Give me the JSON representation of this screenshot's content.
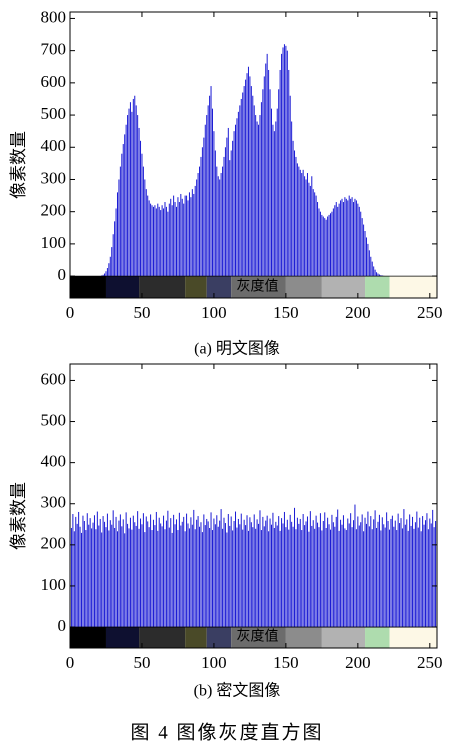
{
  "figure_caption": "图 4   图像灰度直方图",
  "chart_data": [
    {
      "type": "bar",
      "caption": "(a) 明文图像",
      "ylabel": "像素数量",
      "colorbar_label": "灰度值",
      "color": "#1c1cd4",
      "xlim": [
        0,
        255
      ],
      "xticks": [
        0,
        50,
        100,
        150,
        200,
        250
      ],
      "ylim": [
        -68,
        820
      ],
      "yticks": [
        0,
        100,
        200,
        300,
        400,
        500,
        600,
        700,
        800
      ],
      "x": [
        0,
        1,
        2,
        3,
        4,
        5,
        6,
        7,
        8,
        9,
        10,
        11,
        12,
        13,
        14,
        15,
        16,
        17,
        18,
        19,
        20,
        21,
        22,
        23,
        24,
        25,
        26,
        27,
        28,
        29,
        30,
        31,
        32,
        33,
        34,
        35,
        36,
        37,
        38,
        39,
        40,
        41,
        42,
        43,
        44,
        45,
        46,
        47,
        48,
        49,
        50,
        51,
        52,
        53,
        54,
        55,
        56,
        57,
        58,
        59,
        60,
        61,
        62,
        63,
        64,
        65,
        66,
        67,
        68,
        69,
        70,
        71,
        72,
        73,
        74,
        75,
        76,
        77,
        78,
        79,
        80,
        81,
        82,
        83,
        84,
        85,
        86,
        87,
        88,
        89,
        90,
        91,
        92,
        93,
        94,
        95,
        96,
        97,
        98,
        99,
        100,
        101,
        102,
        103,
        104,
        105,
        106,
        107,
        108,
        109,
        110,
        111,
        112,
        113,
        114,
        115,
        116,
        117,
        118,
        119,
        120,
        121,
        122,
        123,
        124,
        125,
        126,
        127,
        128,
        129,
        130,
        131,
        132,
        133,
        134,
        135,
        136,
        137,
        138,
        139,
        140,
        141,
        142,
        143,
        144,
        145,
        146,
        147,
        148,
        149,
        150,
        151,
        152,
        153,
        154,
        155,
        156,
        157,
        158,
        159,
        160,
        161,
        162,
        163,
        164,
        165,
        166,
        167,
        168,
        169,
        170,
        171,
        172,
        173,
        174,
        175,
        176,
        177,
        178,
        179,
        180,
        181,
        182,
        183,
        184,
        185,
        186,
        187,
        188,
        189,
        190,
        191,
        192,
        193,
        194,
        195,
        196,
        197,
        198,
        199,
        200,
        201,
        202,
        203,
        204,
        205,
        206,
        207,
        208,
        209,
        210,
        211,
        212,
        213,
        214,
        215,
        216,
        217,
        218,
        219,
        220,
        221,
        222,
        223,
        224,
        225,
        226,
        227,
        228,
        229,
        230,
        231,
        232,
        233,
        234,
        235,
        236,
        237,
        238,
        239,
        240,
        241,
        242,
        243,
        244,
        245,
        246,
        247,
        248,
        249,
        250,
        251,
        252,
        253,
        254,
        255
      ],
      "values": [
        0,
        0,
        0,
        0,
        0,
        0,
        0,
        0,
        0,
        0,
        0,
        0,
        0,
        0,
        0,
        0,
        0,
        0,
        0,
        0,
        0,
        0,
        2,
        4,
        8,
        15,
        25,
        40,
        60,
        90,
        130,
        170,
        210,
        260,
        300,
        340,
        380,
        410,
        440,
        470,
        500,
        520,
        540,
        510,
        550,
        560,
        530,
        500,
        460,
        420,
        380,
        340,
        300,
        270,
        250,
        235,
        225,
        220,
        215,
        220,
        210,
        225,
        215,
        205,
        220,
        210,
        230,
        215,
        200,
        225,
        240,
        220,
        250,
        230,
        215,
        245,
        230,
        255,
        240,
        225,
        250,
        250,
        235,
        260,
        245,
        270,
        255,
        280,
        300,
        320,
        340,
        370,
        400,
        430,
        470,
        500,
        530,
        560,
        590,
        520,
        450,
        390,
        340,
        310,
        300,
        320,
        340,
        370,
        400,
        430,
        460,
        360,
        390,
        420,
        450,
        470,
        490,
        510,
        530,
        550,
        570,
        590,
        610,
        630,
        650,
        620,
        590,
        560,
        530,
        500,
        480,
        470,
        500,
        540,
        580,
        620,
        660,
        690,
        640,
        580,
        520,
        470,
        450,
        480,
        520,
        580,
        640,
        690,
        710,
        720,
        715,
        700,
        640,
        560,
        480,
        420,
        390,
        370,
        350,
        340,
        330,
        320,
        330,
        310,
        300,
        320,
        290,
        280,
        310,
        270,
        260,
        250,
        230,
        210,
        200,
        190,
        185,
        180,
        175,
        185,
        190,
        195,
        200,
        210,
        220,
        230,
        215,
        225,
        235,
        240,
        230,
        245,
        240,
        235,
        250,
        240,
        245,
        230,
        240,
        235,
        225,
        215,
        200,
        180,
        160,
        140,
        120,
        100,
        80,
        60,
        45,
        30,
        20,
        12,
        8,
        5,
        3,
        2,
        1,
        0,
        0,
        0,
        0,
        0,
        0,
        0,
        0,
        0,
        0,
        0,
        0,
        0,
        0,
        0,
        0,
        0,
        0,
        0,
        0,
        0,
        0,
        0,
        0,
        0,
        0,
        0,
        0,
        0,
        0,
        0,
        0,
        0,
        0,
        0,
        0,
        0
      ]
    },
    {
      "type": "bar",
      "caption": "(b) 密文图像",
      "ylabel": "像素数量",
      "colorbar_label": "灰度值",
      "color": "#1c1cd4",
      "xlim": [
        0,
        255
      ],
      "xticks": [
        0,
        50,
        100,
        150,
        200,
        250
      ],
      "ylim": [
        -51,
        640
      ],
      "yticks": [
        0,
        100,
        200,
        300,
        400,
        500,
        600
      ],
      "x": [
        0,
        1,
        2,
        3,
        4,
        5,
        6,
        7,
        8,
        9,
        10,
        11,
        12,
        13,
        14,
        15,
        16,
        17,
        18,
        19,
        20,
        21,
        22,
        23,
        24,
        25,
        26,
        27,
        28,
        29,
        30,
        31,
        32,
        33,
        34,
        35,
        36,
        37,
        38,
        39,
        40,
        41,
        42,
        43,
        44,
        45,
        46,
        47,
        48,
        49,
        50,
        51,
        52,
        53,
        54,
        55,
        56,
        57,
        58,
        59,
        60,
        61,
        62,
        63,
        64,
        65,
        66,
        67,
        68,
        69,
        70,
        71,
        72,
        73,
        74,
        75,
        76,
        77,
        78,
        79,
        80,
        81,
        82,
        83,
        84,
        85,
        86,
        87,
        88,
        89,
        90,
        91,
        92,
        93,
        94,
        95,
        96,
        97,
        98,
        99,
        100,
        101,
        102,
        103,
        104,
        105,
        106,
        107,
        108,
        109,
        110,
        111,
        112,
        113,
        114,
        115,
        116,
        117,
        118,
        119,
        120,
        121,
        122,
        123,
        124,
        125,
        126,
        127,
        128,
        129,
        130,
        131,
        132,
        133,
        134,
        135,
        136,
        137,
        138,
        139,
        140,
        141,
        142,
        143,
        144,
        145,
        146,
        147,
        148,
        149,
        150,
        151,
        152,
        153,
        154,
        155,
        156,
        157,
        158,
        159,
        160,
        161,
        162,
        163,
        164,
        165,
        166,
        167,
        168,
        169,
        170,
        171,
        172,
        173,
        174,
        175,
        176,
        177,
        178,
        179,
        180,
        181,
        182,
        183,
        184,
        185,
        186,
        187,
        188,
        189,
        190,
        191,
        192,
        193,
        194,
        195,
        196,
        197,
        198,
        199,
        200,
        201,
        202,
        203,
        204,
        205,
        206,
        207,
        208,
        209,
        210,
        211,
        212,
        213,
        214,
        215,
        216,
        217,
        218,
        219,
        220,
        221,
        222,
        223,
        224,
        225,
        226,
        227,
        228,
        229,
        230,
        231,
        232,
        233,
        234,
        235,
        236,
        237,
        238,
        239,
        240,
        241,
        242,
        243,
        244,
        245,
        246,
        247,
        248,
        249,
        250,
        251,
        252,
        253,
        254,
        255
      ],
      "values": [
        262,
        241,
        275,
        233,
        268,
        251,
        280,
        244,
        229,
        271,
        258,
        236,
        277,
        249,
        265,
        240,
        254,
        272,
        238,
        281,
        247,
        263,
        230,
        270,
        256,
        243,
        276,
        235,
        260,
        249,
        284,
        241,
        268,
        233,
        259,
        274,
        245,
        262,
        228,
        279,
        251,
        240,
        266,
        237,
        271,
        255,
        246,
        282,
        239,
        264,
        250,
        277,
        231,
        269,
        257,
        243,
        274,
        236,
        261,
        248,
        280,
        234,
        266,
        252,
        245,
        271,
        238,
        259,
        283,
        242,
        265,
        229,
        273,
        250,
        262,
        236,
        278,
        247,
        256,
        268,
        233,
        276,
        252,
        240,
        267,
        249,
        285,
        238,
        261,
        270,
        244,
        255,
        231,
        274,
        248,
        263,
        257,
        241,
        279,
        236,
        264,
        250,
        272,
        244,
        259,
        287,
        239,
        266,
        253,
        230,
        275,
        246,
        269,
        235,
        258,
        281,
        242,
        263,
        250,
        276,
        237,
        261,
        248,
        272,
        234,
        267,
        255,
        243,
        274,
        239,
        262,
        251,
        284,
        236,
        268,
        245,
        259,
        271,
        233,
        264,
        249,
        278,
        241,
        256,
        247,
        270,
        234,
        265,
        252,
        280,
        243,
        261,
        237,
        273,
        256,
        244,
        290,
        238,
        266,
        251,
        263,
        236,
        275,
        248,
        257,
        269,
        232,
        282,
        246,
        260,
        239,
        271,
        254,
        243,
        277,
        235,
        258,
        279,
        241,
        266,
        250,
        237,
        273,
        255,
        244,
        268,
        286,
        234,
        261,
        249,
        272,
        240,
        236,
        264,
        252,
        277,
        243,
        260,
        298,
        238,
        269,
        247,
        255,
        274,
        233,
        266,
        251,
        281,
        245,
        270,
        238,
        262,
        284,
        241,
        256,
        273,
        235,
        267,
        250,
        242,
        279,
        258,
        237,
        263,
        271,
        244,
        259,
        236,
        276,
        253,
        265,
        240,
        287,
        249,
        262,
        234,
        274,
        246,
        268,
        239,
        255,
        281,
        242,
        266,
        233,
        270,
        249,
        260,
        277,
        238,
        264,
        252,
        285,
        243,
        258,
        240
      ]
    }
  ]
}
